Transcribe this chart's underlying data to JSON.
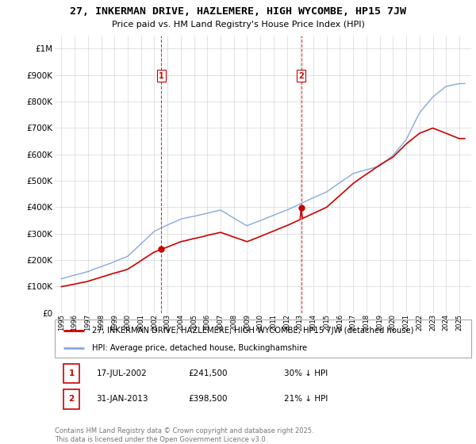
{
  "title": "27, INKERMAN DRIVE, HAZLEMERE, HIGH WYCOMBE, HP15 7JW",
  "subtitle": "Price paid vs. HM Land Registry's House Price Index (HPI)",
  "property_label": "27, INKERMAN DRIVE, HAZLEMERE, HIGH WYCOMBE, HP15 7JW (detached house)",
  "hpi_label": "HPI: Average price, detached house, Buckinghamshire",
  "property_color": "#cc0000",
  "hpi_color": "#88aadd",
  "purchase1_date": "17-JUL-2002",
  "purchase1_price": 241500,
  "purchase1_note": "30% ↓ HPI",
  "purchase2_date": "31-JAN-2013",
  "purchase2_price": 398500,
  "purchase2_note": "21% ↓ HPI",
  "vline1_year": 2002.54,
  "vline2_year": 2013.08,
  "ylim_max": 1050000,
  "footer": "Contains HM Land Registry data © Crown copyright and database right 2025.\nThis data is licensed under the Open Government Licence v3.0.",
  "background_color": "#ffffff",
  "grid_color": "#cccccc",
  "hpi_anchors_t": [
    0,
    2,
    5,
    7,
    9,
    12,
    14,
    17,
    20,
    22,
    24,
    25,
    26,
    27,
    28,
    29,
    30
  ],
  "hpi_anchors_v": [
    130000,
    155000,
    215000,
    310000,
    355000,
    390000,
    330000,
    390000,
    460000,
    530000,
    560000,
    600000,
    660000,
    760000,
    820000,
    860000,
    870000
  ],
  "prop_anchors_t": [
    0,
    2,
    5,
    7,
    9,
    12,
    14,
    17,
    20,
    22,
    24,
    25,
    26,
    27,
    28,
    29,
    30
  ],
  "prop_anchors_v": [
    100000,
    120000,
    165000,
    230000,
    270000,
    305000,
    270000,
    330000,
    400000,
    490000,
    560000,
    590000,
    640000,
    680000,
    700000,
    680000,
    660000
  ]
}
